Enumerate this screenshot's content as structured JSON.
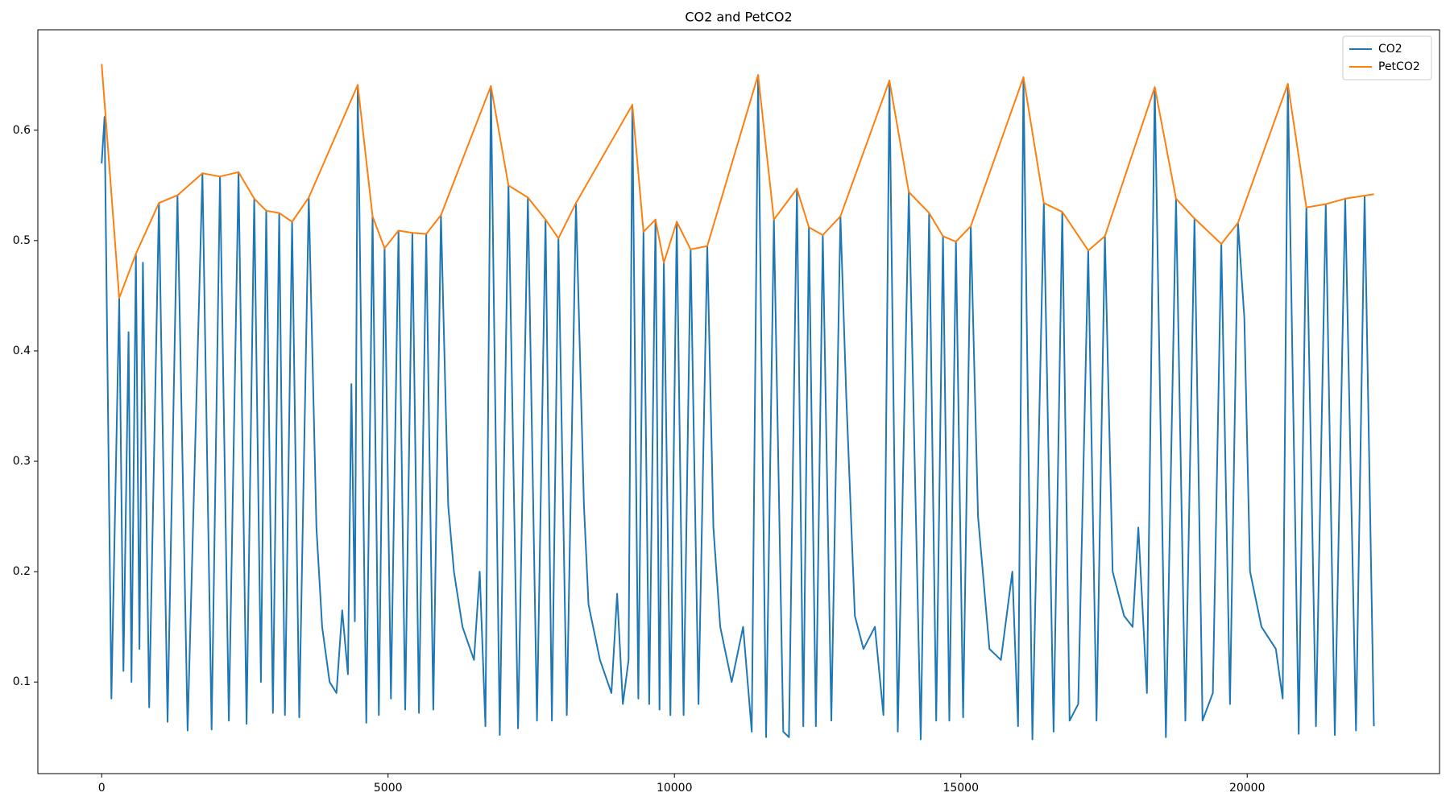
{
  "chart_data": {
    "type": "line",
    "title": "CO2 and PetCO2",
    "xlim": [
      -1114,
      23358
    ],
    "ylim": [
      0.017,
      0.691
    ],
    "xticks": [
      0,
      5000,
      10000,
      15000,
      20000
    ],
    "yticks": [
      0.1,
      0.2,
      0.3,
      0.4,
      0.5,
      0.6
    ],
    "legend": "upper right",
    "series": [
      {
        "name": "CO2",
        "color": "#1f77b4",
        "x": [
          0,
          50,
          170,
          307,
          380,
          470,
          520,
          597,
          660,
          720,
          830,
          1000,
          1150,
          1324,
          1500,
          1760,
          1920,
          2066,
          2220,
          2389,
          2530,
          2663,
          2780,
          2873,
          2990,
          3099,
          3200,
          3325,
          3450,
          3616,
          3750,
          3850,
          3980,
          4100,
          4200,
          4300,
          4360,
          4420,
          4471,
          4620,
          4730,
          4840,
          4939,
          5050,
          5182,
          5300,
          5424,
          5540,
          5666,
          5790,
          5924,
          6050,
          6150,
          6300,
          6500,
          6600,
          6700,
          6796,
          6950,
          7103,
          7270,
          7442,
          7600,
          7749,
          7860,
          7975,
          8120,
          8281,
          8420,
          8500,
          8700,
          8900,
          9000,
          9100,
          9200,
          9266,
          9370,
          9459,
          9560,
          9669,
          9740,
          9815,
          9930,
          10040,
          10160,
          10283,
          10420,
          10573,
          10680,
          10800,
          11000,
          11200,
          11350,
          11461,
          11600,
          11736,
          11900,
          12000,
          12139,
          12250,
          12349,
          12470,
          12591,
          12740,
          12898,
          13000,
          13150,
          13300,
          13500,
          13650,
          13753,
          13900,
          14092,
          14300,
          14447,
          14570,
          14689,
          14800,
          14915,
          15040,
          15174,
          15300,
          15500,
          15700,
          15900,
          16000,
          16094,
          16250,
          16449,
          16620,
          16772,
          16900,
          17050,
          17224,
          17370,
          17515,
          17650,
          17850,
          18000,
          18100,
          18250,
          18386,
          18580,
          18757,
          18920,
          19080,
          19220,
          19400,
          19548,
          19700,
          19839,
          19950,
          20050,
          20250,
          20500,
          20620,
          20710,
          20900,
          21033,
          21200,
          21372,
          21530,
          21711,
          21900,
          22050,
          22212
        ],
        "values": [
          0.57,
          0.612,
          0.085,
          0.448,
          0.11,
          0.417,
          0.1,
          0.488,
          0.13,
          0.48,
          0.077,
          0.534,
          0.064,
          0.541,
          0.056,
          0.561,
          0.057,
          0.558,
          0.065,
          0.562,
          0.062,
          0.538,
          0.1,
          0.527,
          0.072,
          0.525,
          0.07,
          0.517,
          0.068,
          0.539,
          0.24,
          0.15,
          0.1,
          0.09,
          0.165,
          0.107,
          0.37,
          0.155,
          0.641,
          0.063,
          0.522,
          0.07,
          0.493,
          0.085,
          0.509,
          0.075,
          0.507,
          0.072,
          0.506,
          0.075,
          0.523,
          0.26,
          0.2,
          0.15,
          0.12,
          0.2,
          0.06,
          0.64,
          0.052,
          0.55,
          0.058,
          0.539,
          0.065,
          0.519,
          0.065,
          0.502,
          0.07,
          0.534,
          0.26,
          0.17,
          0.12,
          0.09,
          0.18,
          0.08,
          0.12,
          0.623,
          0.085,
          0.508,
          0.08,
          0.519,
          0.075,
          0.48,
          0.07,
          0.517,
          0.07,
          0.492,
          0.08,
          0.495,
          0.24,
          0.15,
          0.1,
          0.15,
          0.055,
          0.65,
          0.05,
          0.519,
          0.055,
          0.05,
          0.547,
          0.06,
          0.512,
          0.06,
          0.505,
          0.065,
          0.522,
          0.36,
          0.16,
          0.13,
          0.15,
          0.07,
          0.645,
          0.055,
          0.544,
          0.048,
          0.525,
          0.065,
          0.504,
          0.065,
          0.499,
          0.068,
          0.513,
          0.25,
          0.13,
          0.12,
          0.2,
          0.06,
          0.648,
          0.048,
          0.534,
          0.055,
          0.526,
          0.065,
          0.08,
          0.491,
          0.065,
          0.504,
          0.2,
          0.16,
          0.15,
          0.24,
          0.09,
          0.639,
          0.05,
          0.538,
          0.065,
          0.52,
          0.065,
          0.09,
          0.497,
          0.08,
          0.516,
          0.43,
          0.2,
          0.15,
          0.13,
          0.085,
          0.642,
          0.053,
          0.53,
          0.06,
          0.533,
          0.052,
          0.538,
          0.056,
          0.54,
          0.06
        ]
      },
      {
        "name": "PetCO2",
        "color": "#ff7f0e",
        "x": [
          0,
          307,
          597,
          1000,
          1324,
          1760,
          2066,
          2389,
          2663,
          2873,
          3099,
          3325,
          3616,
          4471,
          4730,
          4939,
          5182,
          5424,
          5666,
          5924,
          6796,
          7103,
          7442,
          7749,
          7975,
          8281,
          9266,
          9459,
          9669,
          9815,
          10040,
          10283,
          10573,
          11461,
          11736,
          12139,
          12349,
          12591,
          12898,
          13753,
          14092,
          14447,
          14689,
          14915,
          15174,
          16094,
          16449,
          16772,
          17224,
          17515,
          18386,
          18757,
          19080,
          19548,
          19839,
          20710,
          21033,
          21372,
          21711,
          22212
        ],
        "values": [
          0.66,
          0.448,
          0.488,
          0.534,
          0.541,
          0.561,
          0.558,
          0.562,
          0.538,
          0.527,
          0.525,
          0.517,
          0.539,
          0.641,
          0.522,
          0.493,
          0.509,
          0.507,
          0.506,
          0.523,
          0.64,
          0.55,
          0.539,
          0.519,
          0.502,
          0.534,
          0.623,
          0.508,
          0.519,
          0.48,
          0.517,
          0.492,
          0.495,
          0.65,
          0.519,
          0.547,
          0.512,
          0.505,
          0.522,
          0.645,
          0.544,
          0.525,
          0.504,
          0.499,
          0.513,
          0.648,
          0.534,
          0.526,
          0.491,
          0.504,
          0.639,
          0.538,
          0.52,
          0.497,
          0.516,
          0.642,
          0.53,
          0.533,
          0.538,
          0.542
        ]
      }
    ]
  }
}
